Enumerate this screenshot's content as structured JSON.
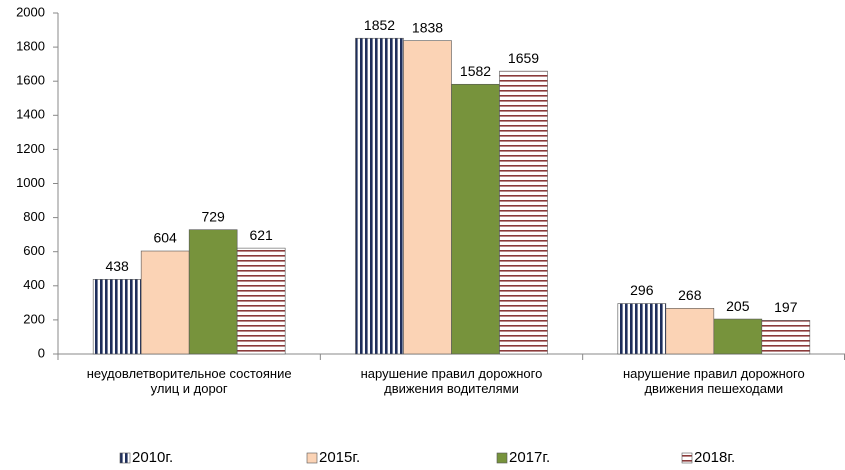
{
  "chart_data": {
    "type": "bar",
    "categories": [
      "неудовлетворительное состояние улиц и дорог",
      "нарушение правил дорожного движения водителями",
      "нарушение правил дорожного движения пешеходами"
    ],
    "series": [
      {
        "name": "2010г.",
        "color": "#1f2f5c",
        "pattern": "vertical-stripes",
        "values": [
          438,
          1852,
          296
        ]
      },
      {
        "name": "2015г.",
        "color": "#fbd3b5",
        "pattern": "solid",
        "values": [
          604,
          1838,
          268
        ]
      },
      {
        "name": "2017г.",
        "color": "#77933c",
        "pattern": "solid",
        "values": [
          729,
          1582,
          205
        ]
      },
      {
        "name": "2018г.",
        "color": "#8b3a3a",
        "pattern": "horizontal-stripes",
        "values": [
          621,
          1659,
          197
        ]
      }
    ],
    "ylim": [
      0,
      2000
    ],
    "yticks": [
      0,
      200,
      400,
      600,
      800,
      1000,
      1200,
      1400,
      1600,
      1800,
      2000
    ],
    "grid": false,
    "legend": "bottom"
  }
}
